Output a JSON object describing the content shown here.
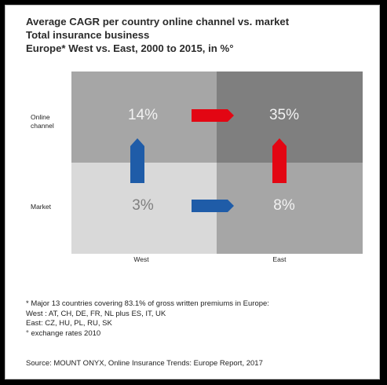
{
  "chart_data": {
    "type": "table",
    "title_lines": [
      "Average CAGR per country online channel vs. market",
      "Total insurance business",
      "Europe* West vs. East, 2000 to 2015, in %°"
    ],
    "rows": [
      "Online channel",
      "Market"
    ],
    "row_label_lines": [
      [
        "Online",
        "channel"
      ],
      [
        "Market"
      ]
    ],
    "columns": [
      "West",
      "East"
    ],
    "cells": [
      [
        "14%",
        "35%"
      ],
      [
        "3%",
        "8%"
      ]
    ],
    "values": [
      [
        14,
        35
      ],
      [
        3,
        8
      ]
    ],
    "arrows": [
      {
        "direction": "right",
        "between": "online West to East",
        "color": "#e30613"
      },
      {
        "direction": "right",
        "between": "market West to East",
        "color": "#1f5ca8"
      },
      {
        "direction": "up",
        "between": "West market to online",
        "color": "#1f5ca8"
      },
      {
        "direction": "up",
        "between": "East market to online",
        "color": "#e30613"
      }
    ],
    "colors": {
      "online_west": "#a6a6a6",
      "online_east": "#7f7f7f",
      "market_west": "#d9d9d9",
      "market_east": "#a6a6a6",
      "red_arrow": "#e30613",
      "blue_arrow": "#1f5ca8"
    }
  },
  "footnotes": [
    "* Major 13 countries covering 83.1% of gross written premiums in Europe:",
    "West : AT, CH, DE, FR, NL plus ES, IT, UK",
    "East: CZ, HU, PL, RU, SK",
    "° exchange rates 2010"
  ],
  "source": "Source: MOUNT ONYX, Online Insurance Trends: Europe Report, 2017"
}
